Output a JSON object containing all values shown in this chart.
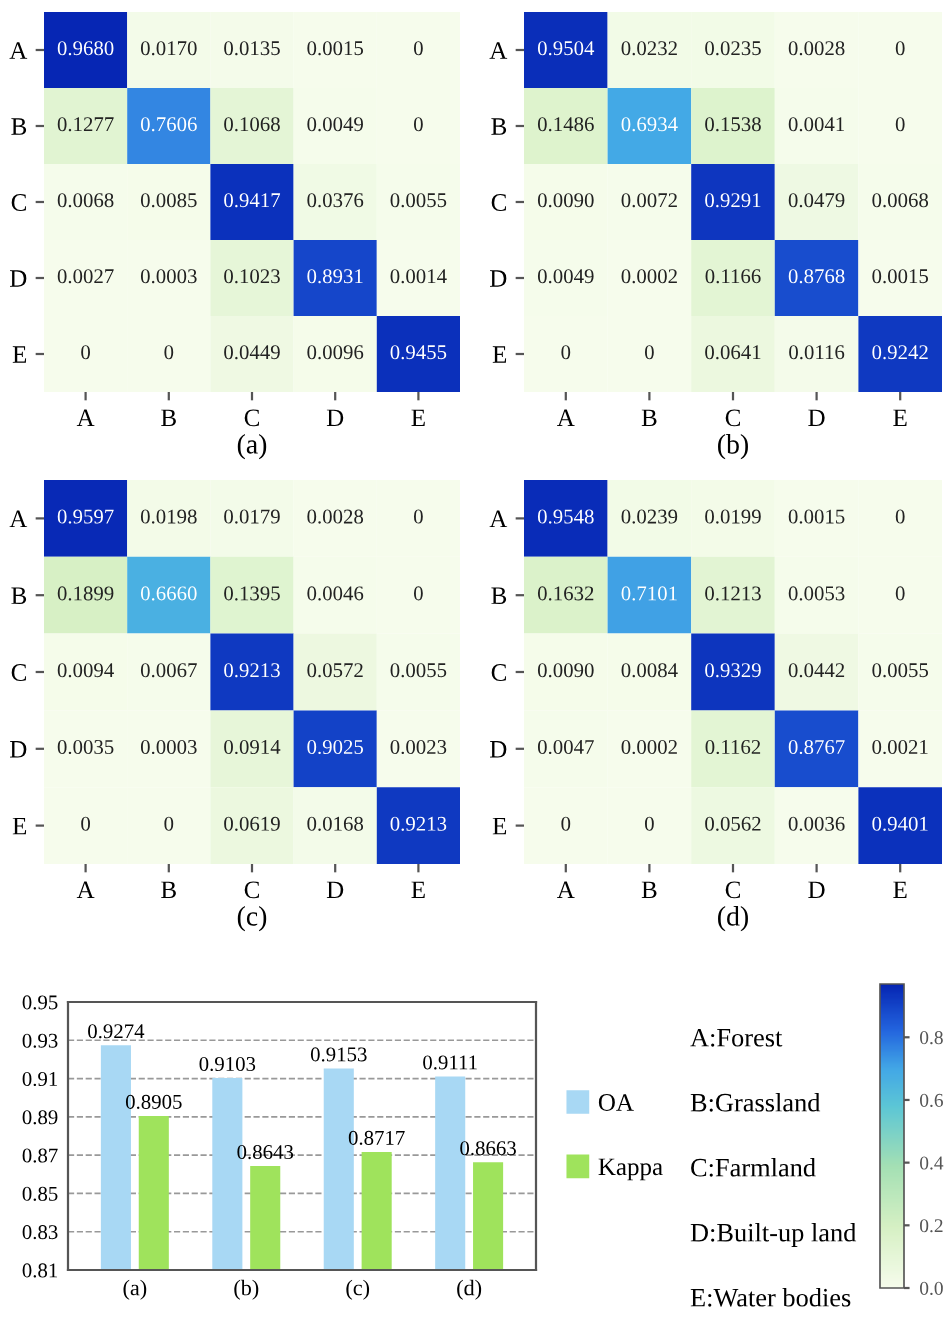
{
  "chart_data": [
    {
      "type": "heatmap",
      "xlabel": "(a)",
      "categories": [
        "A",
        "B",
        "C",
        "D",
        "E"
      ],
      "y_categories": [
        "A",
        "B",
        "C",
        "D",
        "E"
      ],
      "cells": [
        [
          0.968,
          0.017,
          0.0135,
          0.0015,
          0
        ],
        [
          0.1277,
          0.7606,
          0.1068,
          0.0049,
          0
        ],
        [
          0.0068,
          0.0085,
          0.9417,
          0.0376,
          0.0055
        ],
        [
          0.0027,
          0.0003,
          0.1023,
          0.8931,
          0.0014
        ],
        [
          0,
          0,
          0.0449,
          0.0096,
          0.9455
        ]
      ],
      "cell_labels": [
        [
          "0.9680",
          "0.0170",
          "0.0135",
          "0.0015",
          "0"
        ],
        [
          "0.1277",
          "0.7606",
          "0.1068",
          "0.0049",
          "0"
        ],
        [
          "0.0068",
          "0.0085",
          "0.9417",
          "0.0376",
          "0.0055"
        ],
        [
          "0.0027",
          "0.0003",
          "0.1023",
          "0.8931",
          "0.0014"
        ],
        [
          "0",
          "0",
          "0.0449",
          "0.0096",
          "0.9455"
        ]
      ]
    },
    {
      "type": "heatmap",
      "xlabel": "(b)",
      "categories": [
        "A",
        "B",
        "C",
        "D",
        "E"
      ],
      "y_categories": [
        "A",
        "B",
        "C",
        "D",
        "E"
      ],
      "cells": [
        [
          0.9504,
          0.0232,
          0.0235,
          0.0028,
          0
        ],
        [
          0.1486,
          0.6934,
          0.1538,
          0.0041,
          0
        ],
        [
          0.009,
          0.0072,
          0.9291,
          0.0479,
          0.0068
        ],
        [
          0.0049,
          0.0002,
          0.1166,
          0.8768,
          0.0015
        ],
        [
          0,
          0,
          0.0641,
          0.0116,
          0.9242
        ]
      ],
      "cell_labels": [
        [
          "0.9504",
          "0.0232",
          "0.0235",
          "0.0028",
          "0"
        ],
        [
          "0.1486",
          "0.6934",
          "0.1538",
          "0.0041",
          "0"
        ],
        [
          "0.0090",
          "0.0072",
          "0.9291",
          "0.0479",
          "0.0068"
        ],
        [
          "0.0049",
          "0.0002",
          "0.1166",
          "0.8768",
          "0.0015"
        ],
        [
          "0",
          "0",
          "0.0641",
          "0.0116",
          "0.9242"
        ]
      ]
    },
    {
      "type": "heatmap",
      "xlabel": "(c)",
      "categories": [
        "A",
        "B",
        "C",
        "D",
        "E"
      ],
      "y_categories": [
        "A",
        "B",
        "C",
        "D",
        "E"
      ],
      "cells": [
        [
          0.9597,
          0.0198,
          0.0179,
          0.0028,
          0
        ],
        [
          0.1899,
          0.666,
          0.1395,
          0.0046,
          0
        ],
        [
          0.0094,
          0.0067,
          0.9213,
          0.0572,
          0.0055
        ],
        [
          0.0035,
          0.0003,
          0.0914,
          0.9025,
          0.0023
        ],
        [
          0,
          0,
          0.0619,
          0.0168,
          0.9213
        ]
      ],
      "cell_labels": [
        [
          "0.9597",
          "0.0198",
          "0.0179",
          "0.0028",
          "0"
        ],
        [
          "0.1899",
          "0.6660",
          "0.1395",
          "0.0046",
          "0"
        ],
        [
          "0.0094",
          "0.0067",
          "0.9213",
          "0.0572",
          "0.0055"
        ],
        [
          "0.0035",
          "0.0003",
          "0.0914",
          "0.9025",
          "0.0023"
        ],
        [
          "0",
          "0",
          "0.0619",
          "0.0168",
          "0.9213"
        ]
      ]
    },
    {
      "type": "heatmap",
      "xlabel": "(d)",
      "categories": [
        "A",
        "B",
        "C",
        "D",
        "E"
      ],
      "y_categories": [
        "A",
        "B",
        "C",
        "D",
        "E"
      ],
      "cells": [
        [
          0.9548,
          0.0239,
          0.0199,
          0.0015,
          0
        ],
        [
          0.1632,
          0.7101,
          0.1213,
          0.0053,
          0
        ],
        [
          0.009,
          0.0084,
          0.9329,
          0.0442,
          0.0055
        ],
        [
          0.0047,
          0.0002,
          0.1162,
          0.8767,
          0.0021
        ],
        [
          0,
          0,
          0.0562,
          0.0036,
          0.9401
        ]
      ],
      "cell_labels": [
        [
          "0.9548",
          "0.0239",
          "0.0199",
          "0.0015",
          "0"
        ],
        [
          "0.1632",
          "0.7101",
          "0.1213",
          "0.0053",
          "0"
        ],
        [
          "0.0090",
          "0.0084",
          "0.9329",
          "0.0442",
          "0.0055"
        ],
        [
          "0.0047",
          "0.0002",
          "0.1162",
          "0.8767",
          "0.0021"
        ],
        [
          "0",
          "0",
          "0.0562",
          "0.0036",
          "0.9401"
        ]
      ],
      "clim": [
        0,
        0.97
      ],
      "cticks": [
        {
          "value": 0,
          "label": "0.0"
        },
        0.2,
        0.4,
        0.6,
        0.8
      ]
    },
    {
      "type": "bar",
      "categories": [
        "(a)",
        "(b)",
        "(c)",
        "(d)"
      ],
      "series": [
        {
          "name": "OA",
          "color": "#a8d8f4",
          "values": [
            0.9274,
            0.9103,
            0.9153,
            0.9111
          ]
        },
        {
          "name": "Kappa",
          "color": "#9fe35c",
          "values": [
            0.8905,
            0.8643,
            0.8717,
            0.8663
          ]
        }
      ],
      "ylim": [
        0.81,
        0.95
      ],
      "yticks": [
        0.81,
        0.83,
        0.85,
        0.87,
        0.89,
        0.91,
        0.93,
        0.95
      ],
      "grid": "y",
      "data_labels": true,
      "legend": "right"
    },
    {
      "type": "other",
      "annotations": [
        "A:Forest",
        "B:Grassland",
        "C:Farmland",
        "D:Built-up land",
        "E:Water bodies"
      ]
    }
  ]
}
